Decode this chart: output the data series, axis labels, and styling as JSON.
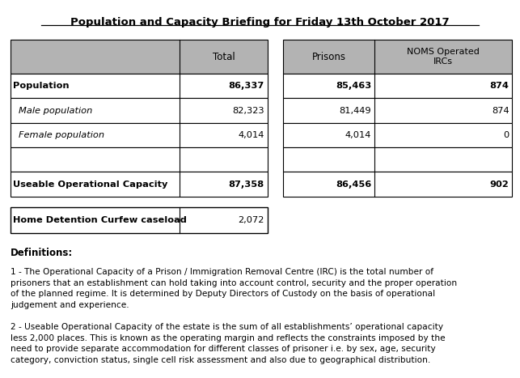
{
  "title": "Population and Capacity Briefing for Friday 13th October 2017",
  "bg_color": "#ffffff",
  "header_bg": "#b3b3b3",
  "border_color": "#000000",
  "table1": {
    "rows": [
      {
        "label": "Population",
        "total": "86,337",
        "bold": true,
        "italic": false
      },
      {
        "label": "Male population",
        "total": "82,323",
        "bold": false,
        "italic": true
      },
      {
        "label": "Female population",
        "total": "4,014",
        "bold": false,
        "italic": true
      },
      {
        "label": "",
        "total": "",
        "bold": false,
        "italic": false
      },
      {
        "label": "Useable Operational Capacity",
        "total": "87,358",
        "bold": true,
        "italic": false
      }
    ]
  },
  "table2": {
    "rows": [
      {
        "prisons": "85,463",
        "ircs": "874"
      },
      {
        "prisons": "81,449",
        "ircs": "874"
      },
      {
        "prisons": "4,014",
        "ircs": "0"
      },
      {
        "prisons": "",
        "ircs": ""
      },
      {
        "prisons": "86,456",
        "ircs": "902"
      }
    ]
  },
  "hdc": {
    "label": "Home Detention Curfew caseload",
    "value": "2,072"
  },
  "definitions_title": "Definitions:",
  "definition1": "1 - The Operational Capacity of a Prison / Immigration Removal Centre (IRC) is the total number of\nprisoners that an establishment can hold taking into account control, security and the proper operation\nof the planned regime. It is determined by Deputy Directors of Custody on the basis of operational\njudgement and experience.",
  "definition2": "2 - Useable Operational Capacity of the estate is the sum of all establishments’ operational capacity\nless 2,000 places. This is known as the operating margin and reflects the constraints imposed by the\nneed to provide separate accommodation for different classes of prisoner i.e. by sex, age, security\ncategory, conviction status, single cell risk assessment and also due to geographical distribution."
}
